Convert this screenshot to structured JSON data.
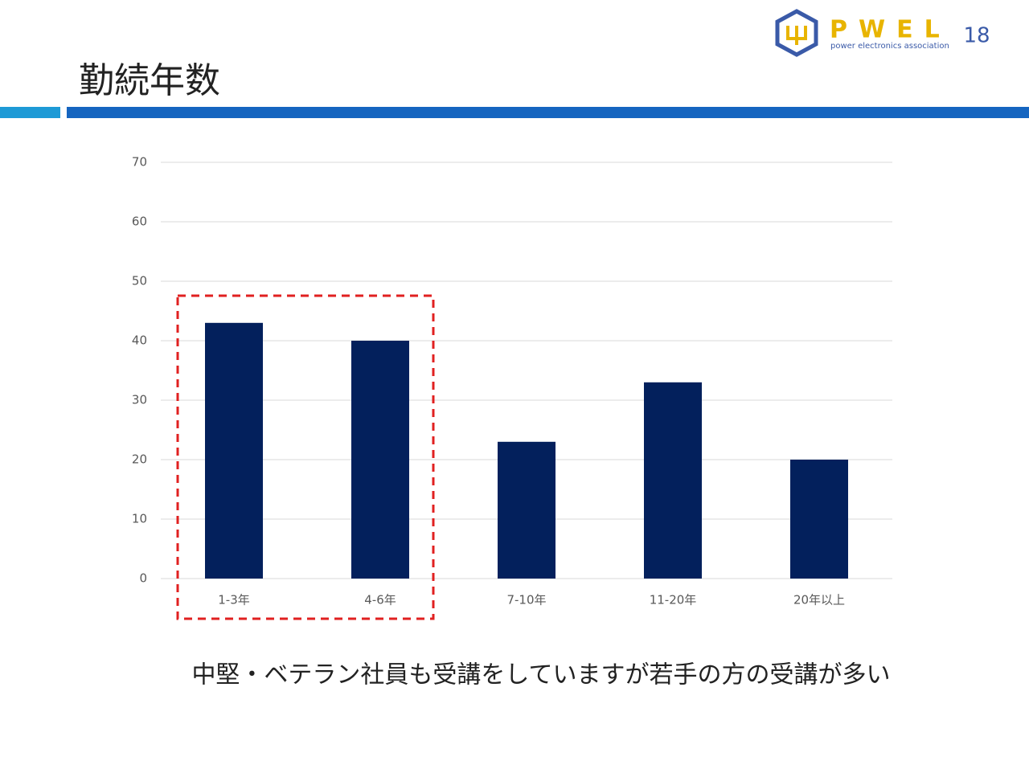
{
  "slide": {
    "title": "勤続年数",
    "page_number": "18",
    "logo": {
      "name": "PWEL",
      "tagline": "power electronics association"
    },
    "caption": "中堅・ベテラン社員も受講をしていますが若手の方の受講が多い"
  },
  "chart_data": {
    "type": "bar",
    "categories": [
      "1-3年",
      "4-6年",
      "7-10年",
      "11-20年",
      "20年以上"
    ],
    "values": [
      43,
      40,
      23,
      33,
      20
    ],
    "color": "#03205c",
    "ylim": [
      0,
      70
    ],
    "yticks": [
      0,
      10,
      20,
      30,
      40,
      50,
      60,
      70
    ],
    "grid": true
  }
}
